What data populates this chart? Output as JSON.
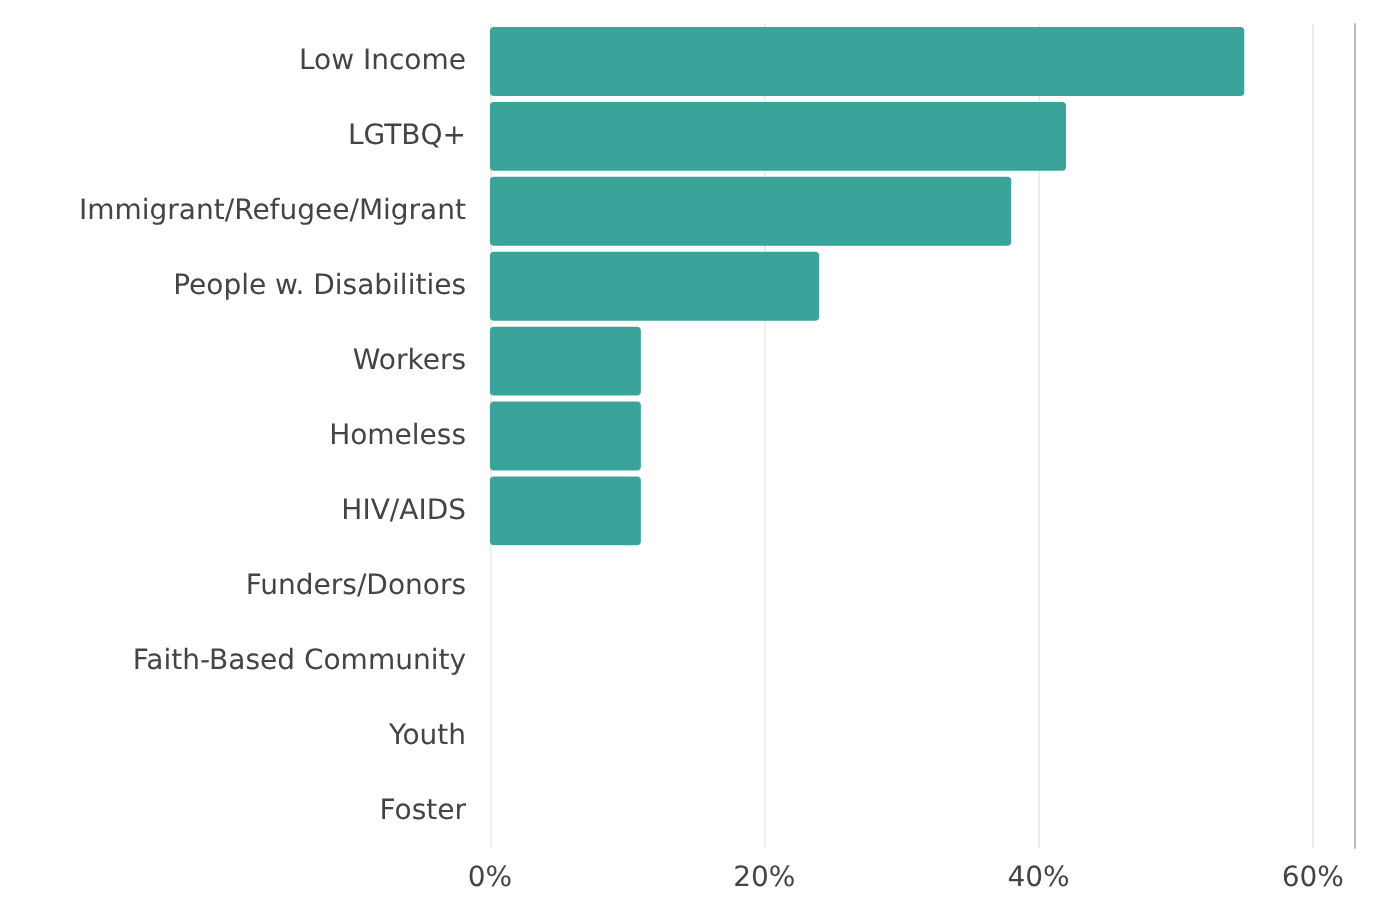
{
  "chart_data": {
    "type": "bar",
    "orientation": "horizontal",
    "categories": [
      "Low Income",
      "LGTBQ+",
      "Immigrant/Refugee/Migrant",
      "People w. Disabilities",
      "Workers",
      "Homeless",
      "HIV/AIDS",
      "Funders/Donors",
      "Faith-Based Community",
      "Youth",
      "Foster"
    ],
    "values": [
      55,
      42,
      38,
      24,
      11,
      11,
      11,
      0,
      0,
      0,
      0
    ],
    "color": "#3aa49a",
    "xlim": [
      0,
      63
    ],
    "xticks": [
      {
        "value": 0,
        "label": "0%"
      },
      {
        "value": 20,
        "label": "20%"
      },
      {
        "value": 40,
        "label": "40%"
      },
      {
        "value": 60,
        "label": "60%"
      }
    ],
    "grid": "x"
  }
}
